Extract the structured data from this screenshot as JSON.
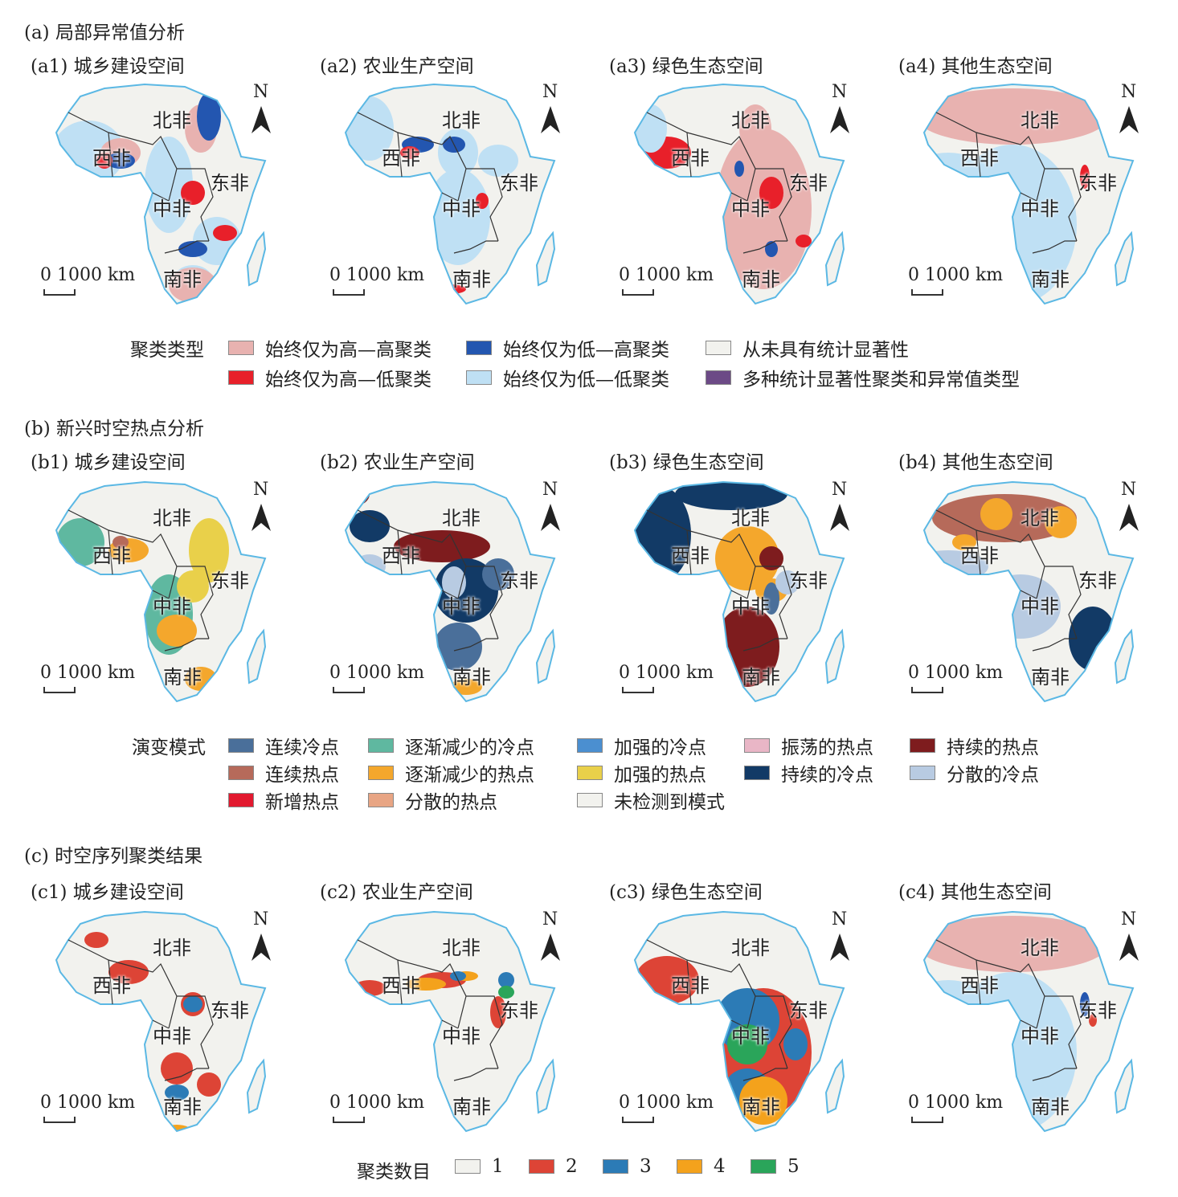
{
  "map_labels": {
    "north": "北非",
    "west": "西非",
    "east": "东非",
    "central": "中非",
    "south": "南非",
    "n": "N",
    "scale": "0 1000 km"
  },
  "sections": [
    {
      "title": "(a) 局部异常值分析",
      "panels": [
        "(a1) 城乡建设空间",
        "(a2) 农业生产空间",
        "(a3) 绿色生态空间",
        "(a4) 其他生态空间"
      ]
    },
    {
      "title": "(b) 新兴时空热点分析",
      "panels": [
        "(b1) 城乡建设空间",
        "(b2) 农业生产空间",
        "(b3) 绿色生态空间",
        "(b4) 其他生态空间"
      ]
    },
    {
      "title": "(c) 时空序列聚类结果",
      "panels": [
        "(c1) 城乡建设空间",
        "(c2) 农业生产空间",
        "(c3) 绿色生态空间",
        "(c4) 其他生态空间"
      ]
    }
  ],
  "legend_a": {
    "title": "聚类类型",
    "items": [
      {
        "label": "始终仅为高—高聚类",
        "color": "#e8b2b0"
      },
      {
        "label": "始终仅为低—高聚类",
        "color": "#2356b0"
      },
      {
        "label": "从未具有统计显著性",
        "color": "#f2f2ee"
      },
      {
        "label": "始终仅为高—低聚类",
        "color": "#e8202a"
      },
      {
        "label": "始终仅为低—低聚类",
        "color": "#bfe0f4"
      },
      {
        "label": "多种统计显著性聚类和异常值类型",
        "color": "#6c4a86"
      }
    ]
  },
  "legend_b": {
    "title": "演变模式",
    "items": [
      {
        "label": "连续冷点",
        "color": "#4a6f9a"
      },
      {
        "label": "逐渐减少的冷点",
        "color": "#5fb8a0"
      },
      {
        "label": "加强的冷点",
        "color": "#4b8fd0"
      },
      {
        "label": "振荡的热点",
        "color": "#e9b6c6"
      },
      {
        "label": "持续的热点",
        "color": "#7e1c1e"
      },
      {
        "label": "连续热点",
        "color": "#b66a5a"
      },
      {
        "label": "逐渐减少的热点",
        "color": "#f4a72c"
      },
      {
        "label": "加强的热点",
        "color": "#e9d04a"
      },
      {
        "label": "持续的冷点",
        "color": "#123a66"
      },
      {
        "label": "分散的冷点",
        "color": "#b8cbe2"
      },
      {
        "label": "新增热点",
        "color": "#e2192f"
      },
      {
        "label": "分散的热点",
        "color": "#e8a584"
      },
      {
        "label": "未检测到模式",
        "color": "#f2f2ee"
      }
    ]
  },
  "legend_c": {
    "title": "聚类数目",
    "items": [
      {
        "label": "1",
        "color": "#f2f2ee"
      },
      {
        "label": "2",
        "color": "#dd4436"
      },
      {
        "label": "3",
        "color": "#2c7bb6"
      },
      {
        "label": "4",
        "color": "#f4a21c"
      },
      {
        "label": "5",
        "color": "#2aa55a"
      }
    ]
  }
}
